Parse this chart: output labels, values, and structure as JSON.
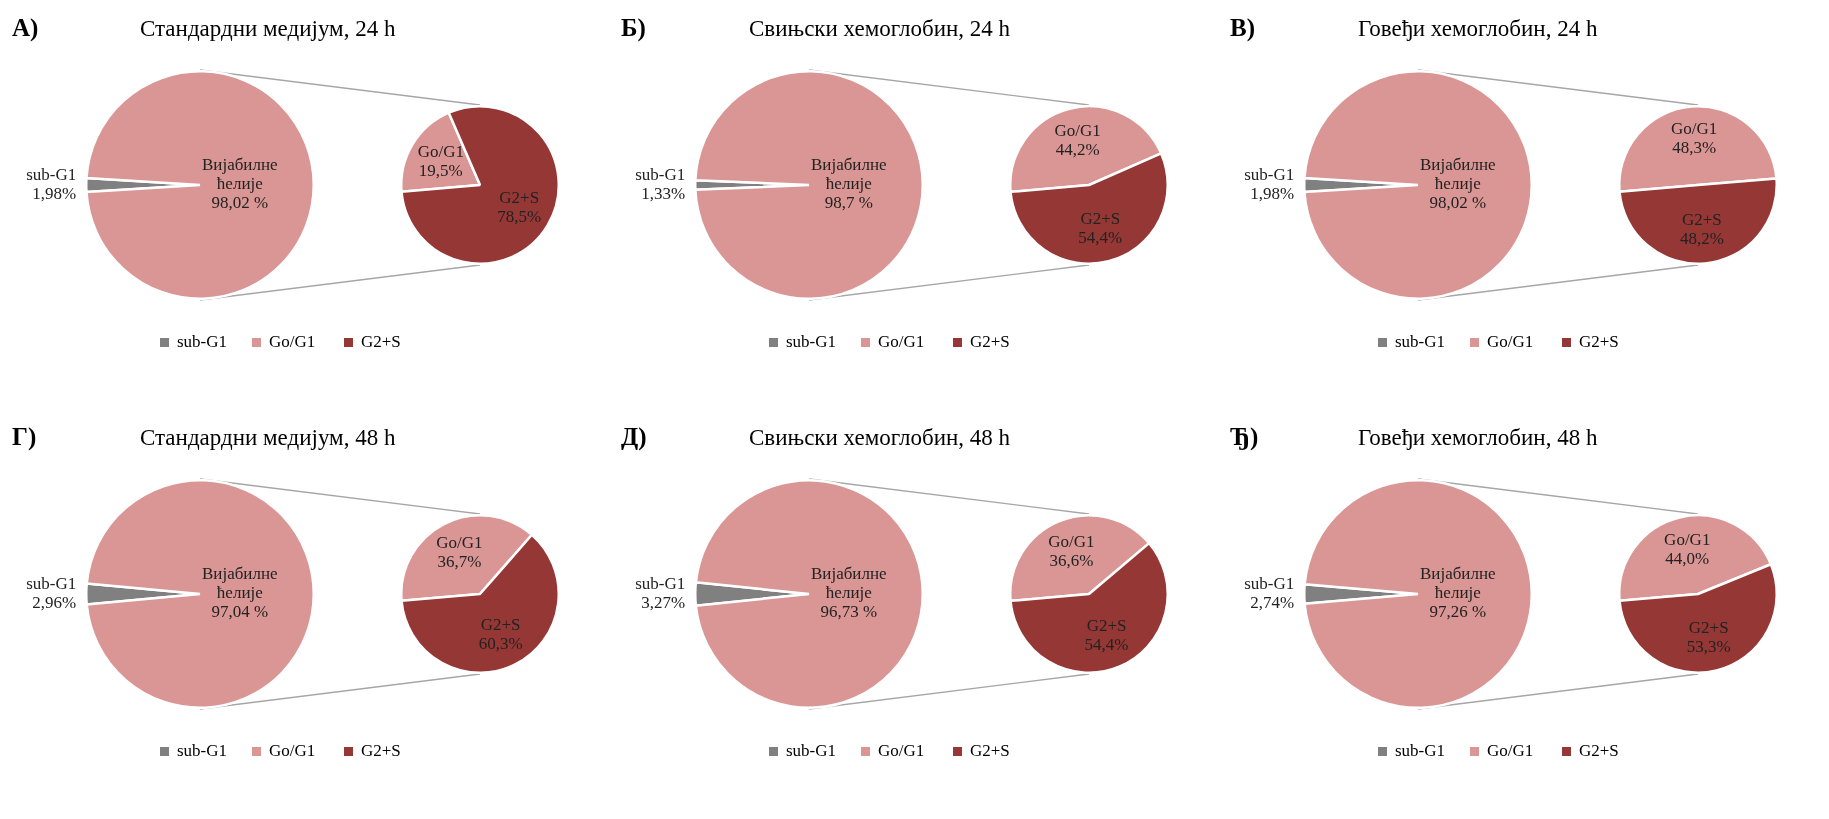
{
  "chart_data": [
    {
      "type": "pie",
      "title": "Стандардни медијум, 24 h",
      "annotations": [
        "А)"
      ],
      "categories": [
        "sub-G1",
        "Вијабилне ћелије"
      ],
      "values": [
        1.98,
        98.02
      ],
      "colors": [
        "#808080",
        "#d99694"
      ],
      "value_labels": [
        "1,98%",
        "98,02 %"
      ],
      "legend": "bottom"
    },
    {
      "type": "pie",
      "categories": [
        "Go/G1",
        "G2+S"
      ],
      "values": [
        19.5,
        78.5
      ],
      "colors": [
        "#d99694",
        "#953735"
      ],
      "value_labels": [
        "19,5%",
        "78,5%"
      ],
      "legend": "bottom"
    },
    {
      "type": "pie",
      "title": "Свињски хемоглобин, 24 h",
      "annotations": [
        "Б)"
      ],
      "categories": [
        "sub-G1",
        "Вијабилне ћелије"
      ],
      "values": [
        1.33,
        98.7
      ],
      "colors": [
        "#808080",
        "#d99694"
      ],
      "value_labels": [
        "1,33%",
        "98,7 %"
      ],
      "legend": "bottom"
    },
    {
      "type": "pie",
      "categories": [
        "Go/G1",
        "G2+S"
      ],
      "values": [
        44.2,
        54.4
      ],
      "colors": [
        "#d99694",
        "#953735"
      ],
      "value_labels": [
        "44,2%",
        "54,4%"
      ],
      "legend": "bottom"
    },
    {
      "type": "pie",
      "title": "Говеђи хемоглобин, 24 h",
      "annotations": [
        "В)"
      ],
      "categories": [
        "sub-G1",
        "Вијабилне ћелије"
      ],
      "values": [
        1.98,
        98.02
      ],
      "colors": [
        "#808080",
        "#d99694"
      ],
      "value_labels": [
        "1,98%",
        "98,02 %"
      ],
      "legend": "bottom"
    },
    {
      "type": "pie",
      "categories": [
        "Go/G1",
        "G2+S"
      ],
      "values": [
        48.3,
        48.2
      ],
      "colors": [
        "#d99694",
        "#953735"
      ],
      "value_labels": [
        "48,3%",
        "48,2%"
      ],
      "legend": "bottom"
    },
    {
      "type": "pie",
      "title": "Стандардни медијум, 48 h",
      "annotations": [
        "Г)"
      ],
      "categories": [
        "sub-G1",
        "Вијабилне ћелије"
      ],
      "values": [
        2.96,
        97.04
      ],
      "colors": [
        "#808080",
        "#d99694"
      ],
      "value_labels": [
        "2,96%",
        "97,04 %"
      ],
      "legend": "bottom"
    },
    {
      "type": "pie",
      "categories": [
        "Go/G1",
        "G2+S"
      ],
      "values": [
        36.7,
        60.3
      ],
      "colors": [
        "#d99694",
        "#953735"
      ],
      "value_labels": [
        "36,7%",
        "60,3%"
      ],
      "legend": "bottom"
    },
    {
      "type": "pie",
      "title": "Свињски хемоглобин, 48 h",
      "annotations": [
        "Д)"
      ],
      "categories": [
        "sub-G1",
        "Вијабилне ћелије"
      ],
      "values": [
        3.27,
        96.73
      ],
      "colors": [
        "#808080",
        "#d99694"
      ],
      "value_labels": [
        "3,27%",
        "96,73 %"
      ],
      "legend": "bottom"
    },
    {
      "type": "pie",
      "categories": [
        "Go/G1",
        "G2+S"
      ],
      "values": [
        36.6,
        54.4
      ],
      "colors": [
        "#d99694",
        "#953735"
      ],
      "value_labels": [
        "36,6%",
        "54,4%"
      ],
      "legend": "bottom"
    },
    {
      "type": "pie",
      "title": "Говеђи хемоглобин, 48 h",
      "annotations": [
        "Ђ)"
      ],
      "categories": [
        "sub-G1",
        "Вијабилне ћелије"
      ],
      "values": [
        2.74,
        97.26
      ],
      "colors": [
        "#808080",
        "#d99694"
      ],
      "value_labels": [
        "2,74%",
        "97,26 %"
      ],
      "legend": "bottom"
    },
    {
      "type": "pie",
      "categories": [
        "Go/G1",
        "G2+S"
      ],
      "values": [
        44.0,
        53.3
      ],
      "colors": [
        "#d99694",
        "#953735"
      ],
      "value_labels": [
        "44,0%",
        "53,3%"
      ],
      "legend": "bottom"
    }
  ]
}
